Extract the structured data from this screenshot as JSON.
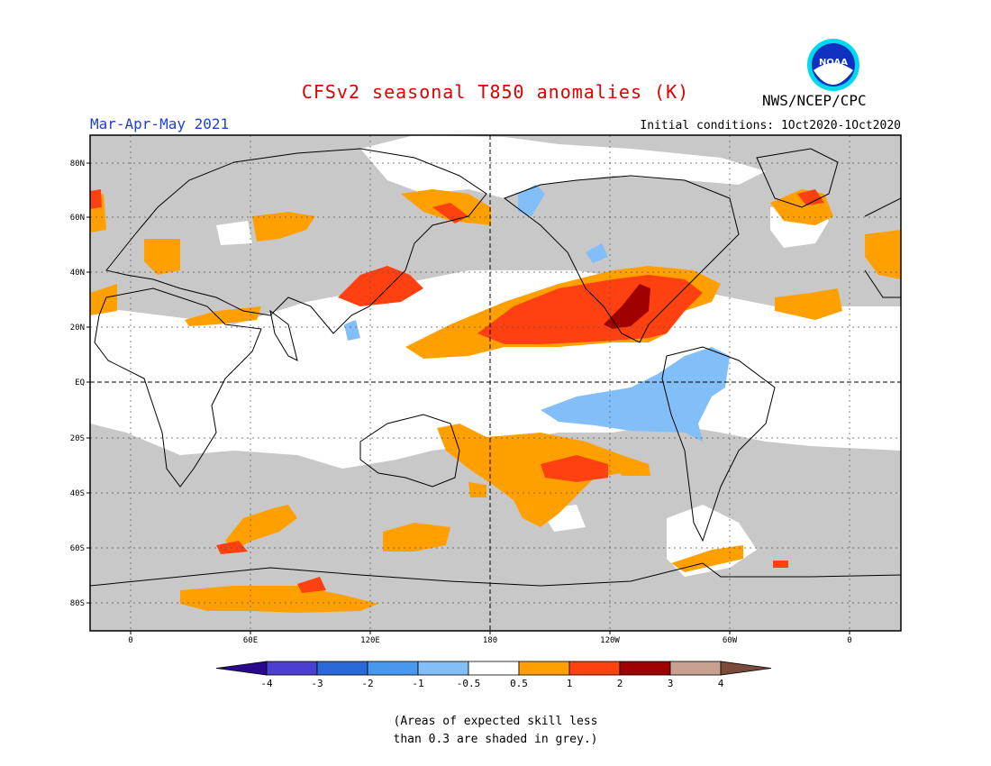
{
  "header": {
    "title": "CFSv2 seasonal T850 anomalies (K)",
    "season": "Mar-Apr-May 2021",
    "initial_conditions": "Initial conditions: 1Oct2020-1Oct2020",
    "agency": "NWS/NCEP/CPC",
    "logo_text": "NOAA"
  },
  "map": {
    "lat_labels": [
      "80N",
      "60N",
      "40N",
      "20N",
      "EQ",
      "20S",
      "40S",
      "60S",
      "80S"
    ],
    "lon_labels": [
      "0",
      "60E",
      "120E",
      "180",
      "120W",
      "60W",
      "0"
    ]
  },
  "colorbar": {
    "labels": [
      "-4",
      "-3",
      "-2",
      "-1",
      "-0.5",
      "0.5",
      "1",
      "2",
      "3",
      "4"
    ],
    "colors": [
      "#2a0a8c",
      "#4a3fd0",
      "#2a6ad8",
      "#4a98ee",
      "#82bef8",
      "#ffffff",
      "#ffa000",
      "#ff4010",
      "#a00000",
      "#c8a090",
      "#7a4a3a"
    ]
  },
  "footnote": {
    "line1": "(Areas of expected skill less",
    "line2": "than 0.3 are shaded in grey.)"
  },
  "colors": {
    "grey": "#c8c8c8",
    "orange": "#ffa000",
    "red": "#ff4010",
    "darkred": "#a00000",
    "lightblue": "#82bef8"
  }
}
